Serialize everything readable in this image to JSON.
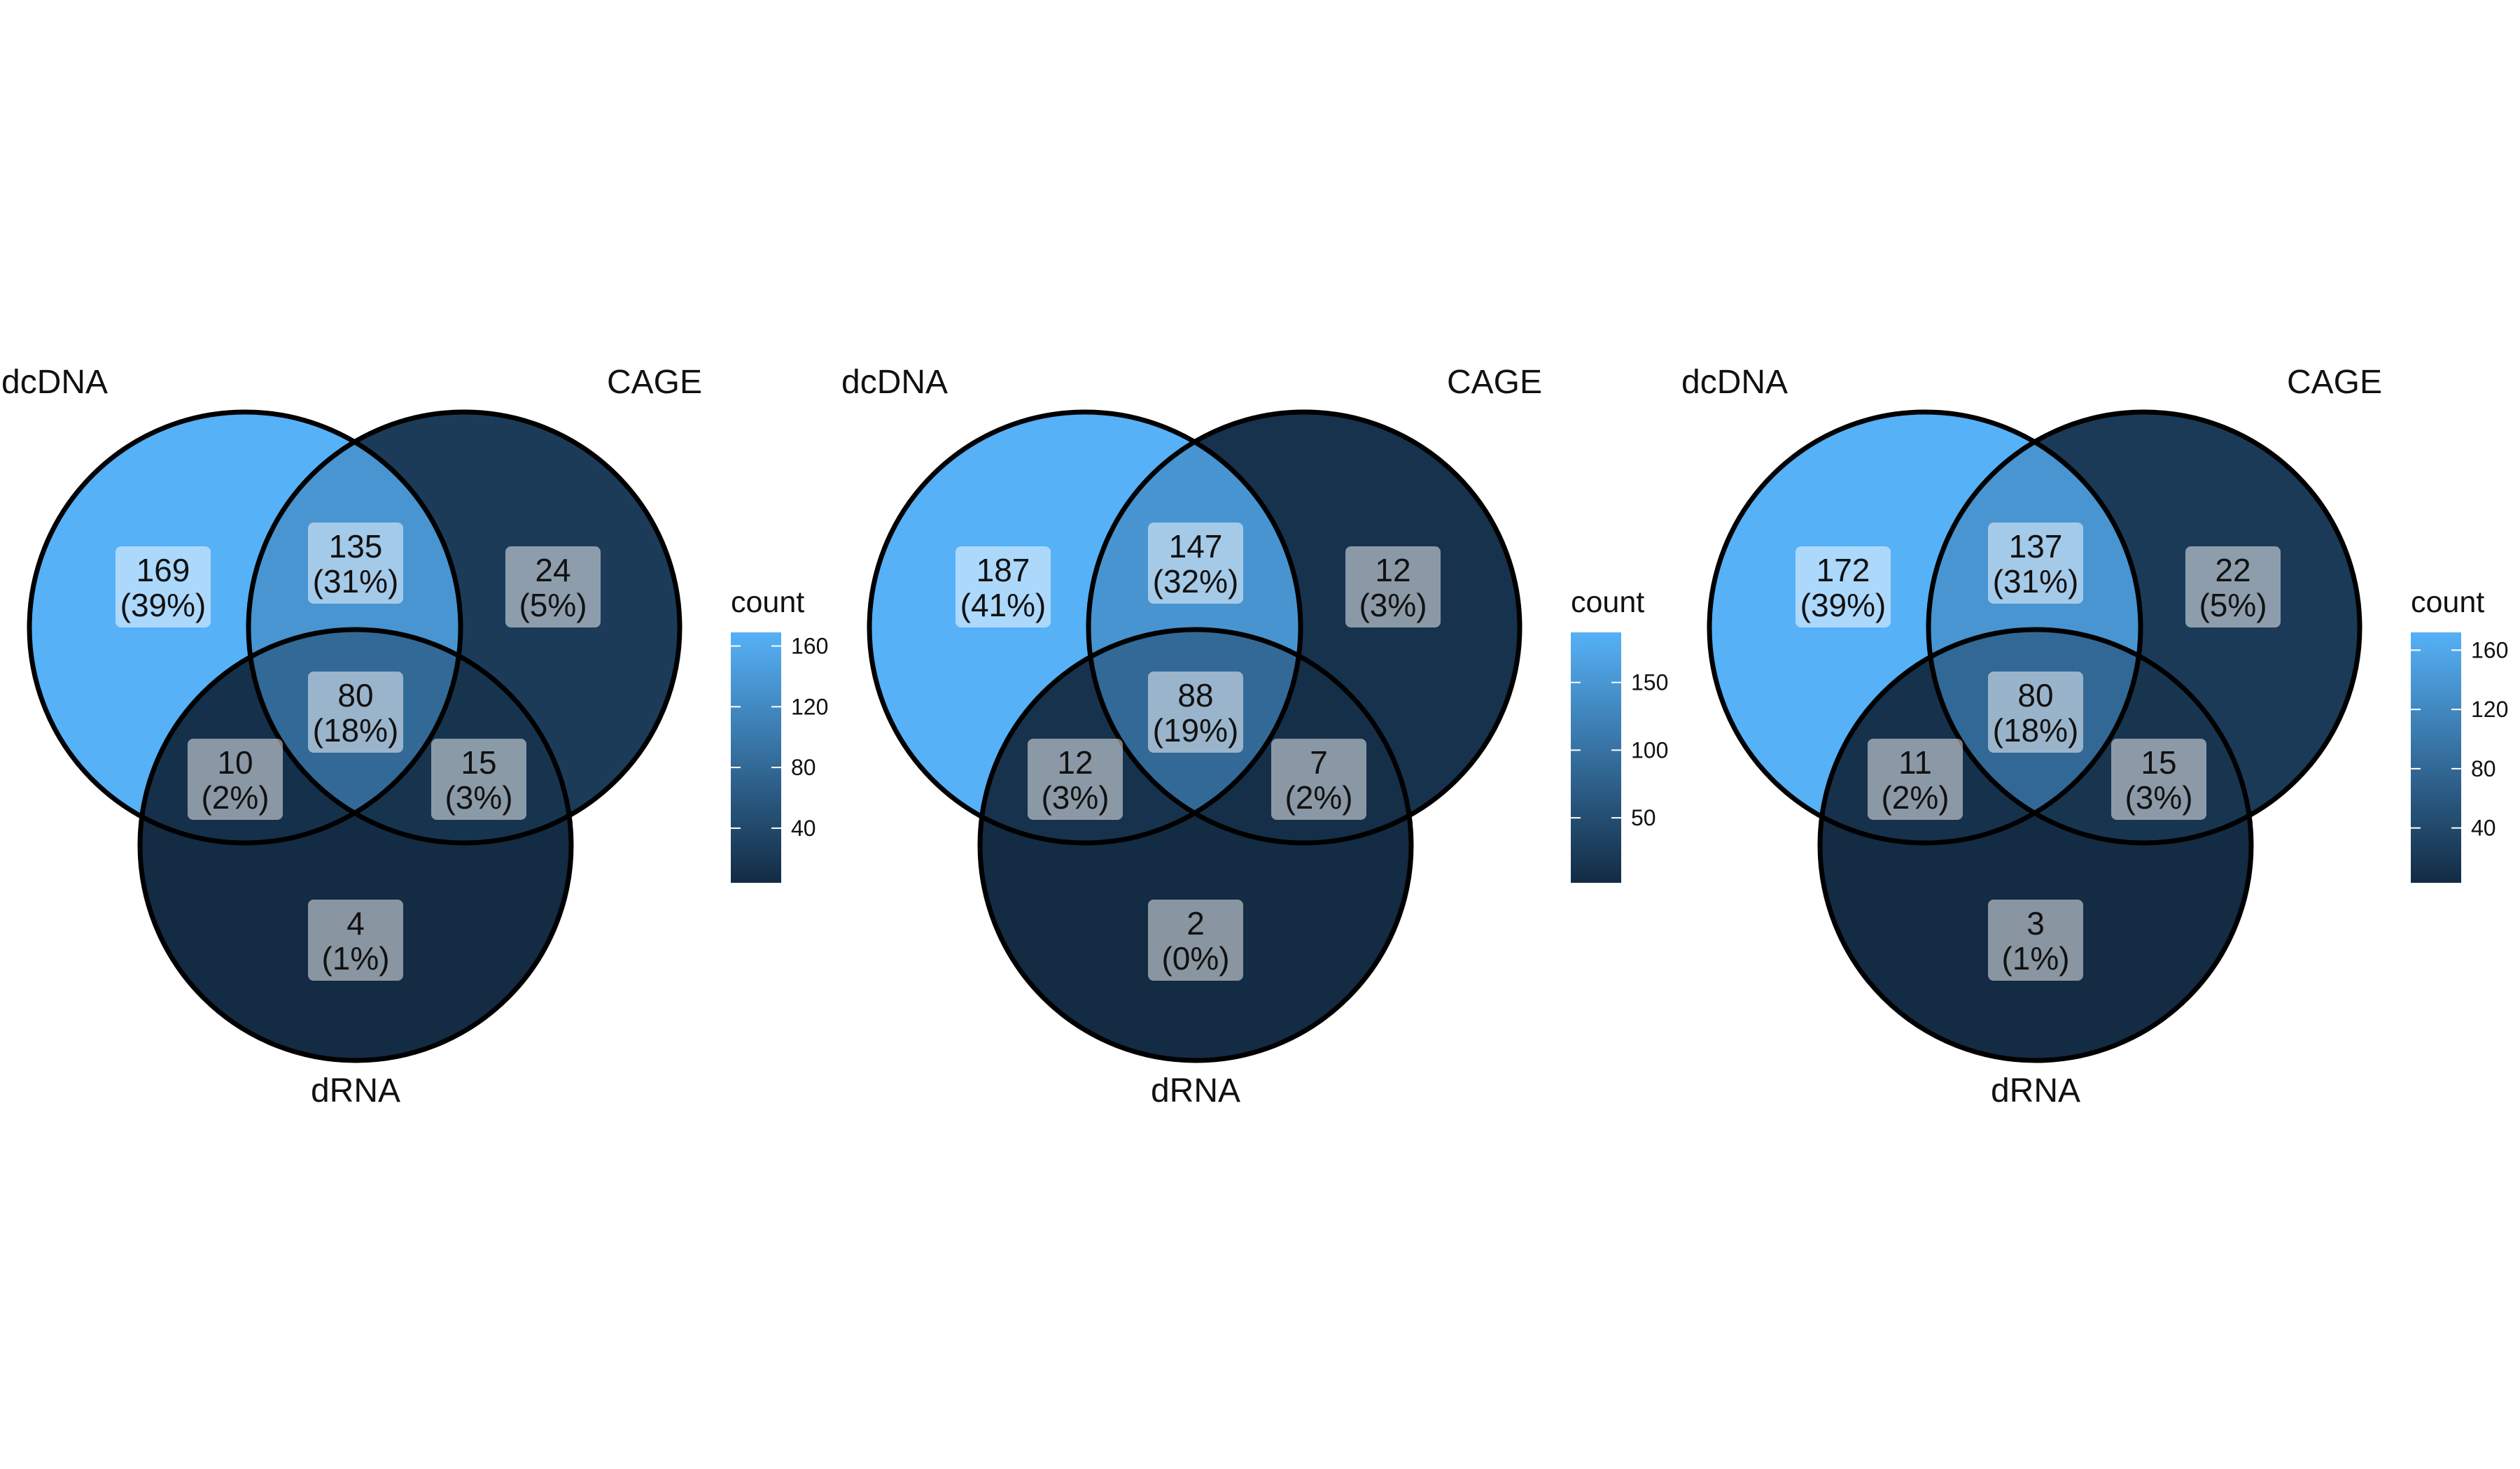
{
  "chart_data": [
    {
      "type": "venn",
      "sets": [
        "dcDNA",
        "CAGE",
        "dRNA"
      ],
      "regions": [
        {
          "sets": [
            "dcDNA"
          ],
          "count": 169,
          "percent": "(39%)"
        },
        {
          "sets": [
            "dcDNA",
            "CAGE"
          ],
          "count": 135,
          "percent": "(31%)"
        },
        {
          "sets": [
            "CAGE"
          ],
          "count": 24,
          "percent": "(5%)"
        },
        {
          "sets": [
            "dcDNA",
            "CAGE",
            "dRNA"
          ],
          "count": 80,
          "percent": "(18%)"
        },
        {
          "sets": [
            "dcDNA",
            "dRNA"
          ],
          "count": 10,
          "percent": "(2%)"
        },
        {
          "sets": [
            "CAGE",
            "dRNA"
          ],
          "count": 15,
          "percent": "(3%)"
        },
        {
          "sets": [
            "dRNA"
          ],
          "count": 4,
          "percent": "(1%)"
        }
      ],
      "legend": {
        "title": "count",
        "ticks": [
          40,
          80,
          120,
          160
        ],
        "range": [
          4,
          169
        ],
        "low_color": "#132B43",
        "high_color": "#56B1F7"
      }
    },
    {
      "type": "venn",
      "sets": [
        "dcDNA",
        "CAGE",
        "dRNA"
      ],
      "regions": [
        {
          "sets": [
            "dcDNA"
          ],
          "count": 187,
          "percent": "(41%)"
        },
        {
          "sets": [
            "dcDNA",
            "CAGE"
          ],
          "count": 147,
          "percent": "(32%)"
        },
        {
          "sets": [
            "CAGE"
          ],
          "count": 12,
          "percent": "(3%)"
        },
        {
          "sets": [
            "dcDNA",
            "CAGE",
            "dRNA"
          ],
          "count": 88,
          "percent": "(19%)"
        },
        {
          "sets": [
            "dcDNA",
            "dRNA"
          ],
          "count": 12,
          "percent": "(3%)"
        },
        {
          "sets": [
            "CAGE",
            "dRNA"
          ],
          "count": 7,
          "percent": "(2%)"
        },
        {
          "sets": [
            "dRNA"
          ],
          "count": 2,
          "percent": "(0%)"
        }
      ],
      "legend": {
        "title": "count",
        "ticks": [
          50,
          100,
          150
        ],
        "range": [
          2,
          187
        ],
        "low_color": "#132B43",
        "high_color": "#56B1F7"
      }
    },
    {
      "type": "venn",
      "sets": [
        "dcDNA",
        "CAGE",
        "dRNA"
      ],
      "regions": [
        {
          "sets": [
            "dcDNA"
          ],
          "count": 172,
          "percent": "(39%)"
        },
        {
          "sets": [
            "dcDNA",
            "CAGE"
          ],
          "count": 137,
          "percent": "(31%)"
        },
        {
          "sets": [
            "CAGE"
          ],
          "count": 22,
          "percent": "(5%)"
        },
        {
          "sets": [
            "dcDNA",
            "CAGE",
            "dRNA"
          ],
          "count": 80,
          "percent": "(18%)"
        },
        {
          "sets": [
            "dcDNA",
            "dRNA"
          ],
          "count": 11,
          "percent": "(2%)"
        },
        {
          "sets": [
            "CAGE",
            "dRNA"
          ],
          "count": 15,
          "percent": "(3%)"
        },
        {
          "sets": [
            "dRNA"
          ],
          "count": 3,
          "percent": "(1%)"
        }
      ],
      "legend": {
        "title": "count",
        "ticks": [
          40,
          80,
          120,
          160
        ],
        "range": [
          3,
          172
        ],
        "low_color": "#132B43",
        "high_color": "#56B1F7"
      }
    }
  ]
}
